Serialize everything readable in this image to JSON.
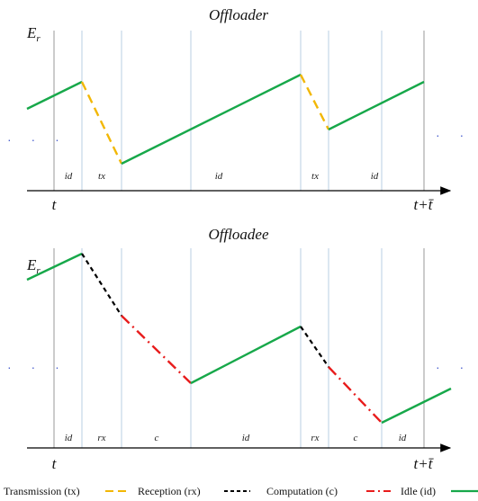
{
  "top": {
    "title": "Offloader",
    "ylabel": "E",
    "ylabel_sub": "r",
    "t_start": "t",
    "t_end": "t+t̄",
    "segments": [
      "id",
      "tx",
      "id",
      "tx",
      "id"
    ],
    "ellipsis": "· · ·"
  },
  "bottom": {
    "title": "Offloadee",
    "ylabel": "E",
    "ylabel_sub": "r",
    "t_start": "t",
    "t_end": "t+t̄",
    "segments": [
      "id",
      "rx",
      "c",
      "id",
      "rx",
      "c",
      "id"
    ],
    "ellipsis": "· · ·"
  },
  "legend": [
    {
      "label": "Transmission (tx)",
      "color": "#f2b705",
      "style": "dashed"
    },
    {
      "label": "Reception (rx)",
      "color": "#000000",
      "style": "dotted-dash"
    },
    {
      "label": "Computation (c)",
      "color": "#e81c1c",
      "style": "dash-dot"
    },
    {
      "label": "Idle (id)",
      "color": "#17a84a",
      "style": "solid"
    }
  ],
  "colors": {
    "idle": "#17a84a",
    "transmission": "#f2b705",
    "reception": "#000000",
    "computation": "#e81c1c",
    "gridline": "#b9cfe3",
    "axis": "#000000",
    "ellipsis": "#4a5fcf"
  }
}
